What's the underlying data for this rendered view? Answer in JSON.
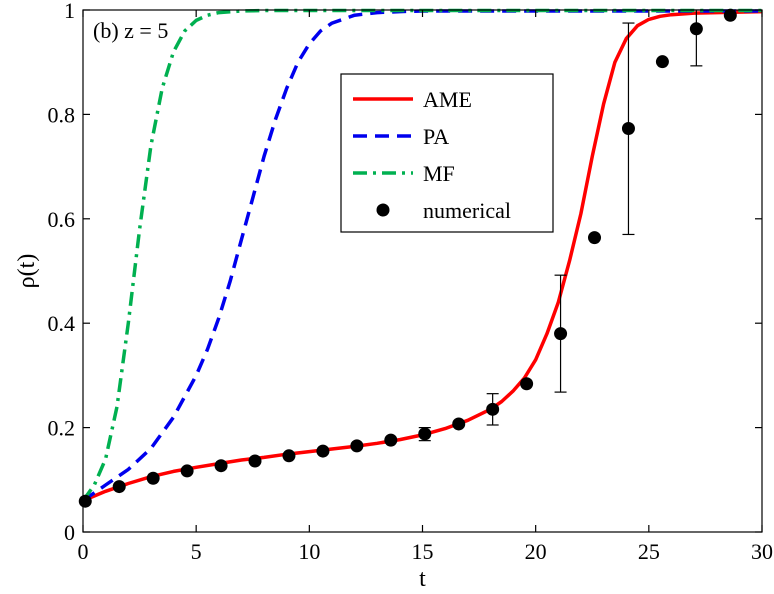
{
  "chart_data": {
    "type": "line",
    "annotation": "(b) z = 5",
    "xlabel": "t",
    "ylabel": "ρ(t)",
    "xlim": [
      0,
      30
    ],
    "ylim": [
      0,
      1
    ],
    "xticks": [
      0,
      5,
      10,
      15,
      20,
      25,
      30
    ],
    "yticks": [
      0,
      0.2,
      0.4,
      0.6,
      0.8,
      1
    ],
    "ytick_labels": [
      "0",
      "0.2",
      "0.4",
      "0.6",
      "0.8",
      "1"
    ],
    "grid": false,
    "legend_position": "upper-center",
    "series": [
      {
        "name": "AME",
        "style": "solid",
        "color": "#ff0000",
        "x": [
          0,
          1,
          2,
          3,
          4,
          5,
          6,
          7,
          8,
          9,
          10,
          11,
          12,
          13,
          14,
          15,
          16,
          17,
          18,
          18.5,
          19,
          19.5,
          20,
          20.5,
          21,
          21.5,
          22,
          22.5,
          23,
          23.5,
          24,
          24.5,
          25,
          25.5,
          26,
          27,
          28,
          29,
          30
        ],
        "y": [
          0.06,
          0.078,
          0.093,
          0.106,
          0.116,
          0.124,
          0.131,
          0.138,
          0.143,
          0.149,
          0.154,
          0.159,
          0.164,
          0.17,
          0.177,
          0.186,
          0.198,
          0.214,
          0.235,
          0.25,
          0.27,
          0.295,
          0.33,
          0.38,
          0.44,
          0.52,
          0.61,
          0.72,
          0.82,
          0.9,
          0.945,
          0.97,
          0.982,
          0.988,
          0.991,
          0.994,
          0.995,
          0.996,
          0.997
        ]
      },
      {
        "name": "PA",
        "style": "dashed",
        "color": "#0000ee",
        "x": [
          0,
          1,
          2,
          3,
          4,
          5,
          5.5,
          6,
          6.5,
          7,
          7.5,
          8,
          8.5,
          9,
          9.5,
          10,
          10.5,
          11,
          12,
          13,
          14,
          15,
          17,
          20,
          25,
          30
        ],
        "y": [
          0.06,
          0.09,
          0.12,
          0.16,
          0.22,
          0.3,
          0.35,
          0.41,
          0.48,
          0.56,
          0.64,
          0.72,
          0.79,
          0.85,
          0.9,
          0.935,
          0.96,
          0.975,
          0.99,
          0.995,
          0.997,
          0.998,
          0.998,
          0.998,
          0.998,
          0.998
        ]
      },
      {
        "name": "MF",
        "style": "dashdot",
        "color": "#00b050",
        "x": [
          0,
          0.5,
          1,
          1.5,
          2,
          2.5,
          3,
          3.5,
          4,
          4.5,
          5,
          5.5,
          6,
          7,
          8,
          10,
          15,
          20,
          25,
          30
        ],
        "y": [
          0.06,
          0.09,
          0.14,
          0.24,
          0.4,
          0.58,
          0.74,
          0.85,
          0.92,
          0.96,
          0.98,
          0.99,
          0.995,
          0.998,
          0.999,
          0.999,
          0.999,
          0.999,
          0.999,
          0.999
        ]
      }
    ],
    "numerical": {
      "name": "numerical",
      "color": "#000000",
      "x": [
        0.1,
        1.6,
        3.1,
        4.6,
        6.1,
        7.6,
        9.1,
        10.6,
        12.1,
        13.6,
        15.1,
        16.6,
        18.1,
        19.6,
        21.1,
        22.6,
        24.1,
        25.6,
        27.1,
        28.6
      ],
      "y": [
        0.059,
        0.087,
        0.103,
        0.117,
        0.127,
        0.136,
        0.146,
        0.155,
        0.165,
        0.176,
        0.188,
        0.207,
        0.235,
        0.284,
        0.38,
        0.564,
        0.773,
        0.901,
        0.964,
        0.99
      ],
      "error_bars": [
        {
          "x": 15.1,
          "low": 0.175,
          "high": 0.2
        },
        {
          "x": 18.1,
          "low": 0.205,
          "high": 0.265
        },
        {
          "x": 21.1,
          "low": 0.268,
          "high": 0.492
        },
        {
          "x": 24.1,
          "low": 0.57,
          "high": 0.975
        },
        {
          "x": 27.1,
          "low": 0.893,
          "high": 1.0
        }
      ]
    }
  }
}
